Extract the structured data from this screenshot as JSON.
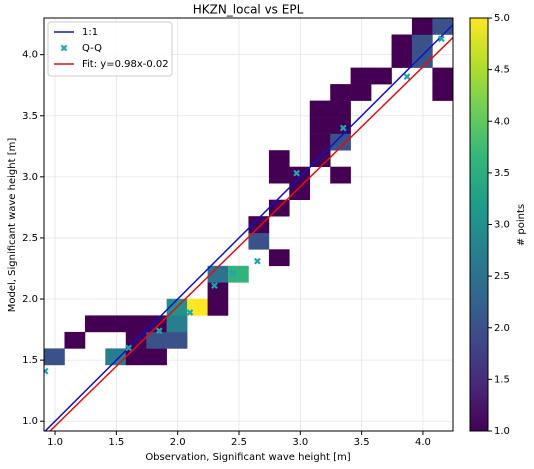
{
  "chart_data": {
    "type": "hist2d",
    "title": "HKZN_local vs EPL",
    "xlabel": "Observation, Significant wave height [m]",
    "ylabel": "Model, Significant wave height [m]",
    "xlim": [
      0.91,
      4.245
    ],
    "ylim": [
      0.92,
      4.3
    ],
    "xticks": [
      {
        "value": 1,
        "label": "1.0"
      },
      {
        "value": 1.5,
        "label": "1.5"
      },
      {
        "value": 2,
        "label": "2.0"
      },
      {
        "value": 2.5,
        "label": "2.5"
      },
      {
        "value": 3,
        "label": "3.0"
      },
      {
        "value": 3.5,
        "label": "3.5"
      },
      {
        "value": 4,
        "label": "4.0"
      }
    ],
    "yticks": [
      {
        "value": 1,
        "label": "1.0"
      },
      {
        "value": 1.5,
        "label": "1.5"
      },
      {
        "value": 2,
        "label": "2.0"
      },
      {
        "value": 2.5,
        "label": "2.5"
      },
      {
        "value": 3,
        "label": "3.0"
      },
      {
        "value": 3.5,
        "label": "3.5"
      },
      {
        "value": 4,
        "label": "4.0"
      }
    ],
    "grid": true,
    "legend": "upper left",
    "xbins": [
      0.91,
      1.077,
      1.244,
      1.41,
      1.577,
      1.744,
      1.91,
      2.077,
      2.244,
      2.41,
      2.577,
      2.744,
      2.91,
      3.077,
      3.244,
      3.41,
      3.577,
      3.744,
      3.91,
      4.077,
      4.245
    ],
    "ybins": [
      0.92,
      1.055,
      1.19,
      1.326,
      1.461,
      1.596,
      1.731,
      1.866,
      2.002,
      2.137,
      2.272,
      2.407,
      2.542,
      2.678,
      2.813,
      2.948,
      3.083,
      3.218,
      3.354,
      3.489,
      3.624,
      3.759,
      3.894,
      4.03,
      4.165,
      4.3
    ],
    "counts": [
      [
        null,
        null,
        null,
        null,
        null,
        null,
        null,
        null,
        null,
        null,
        null,
        null,
        null,
        null,
        null,
        null,
        null,
        null,
        null,
        null
      ],
      [
        null,
        null,
        null,
        null,
        null,
        null,
        null,
        null,
        null,
        null,
        null,
        null,
        null,
        null,
        null,
        null,
        null,
        null,
        null,
        null
      ],
      [
        null,
        null,
        null,
        null,
        null,
        null,
        null,
        null,
        null,
        null,
        null,
        null,
        null,
        null,
        null,
        null,
        null,
        null,
        null,
        null
      ],
      [
        null,
        null,
        null,
        null,
        null,
        null,
        null,
        null,
        null,
        null,
        null,
        null,
        null,
        null,
        null,
        null,
        null,
        null,
        null,
        null
      ],
      [
        2,
        null,
        null,
        2.7,
        1,
        1,
        null,
        null,
        null,
        null,
        null,
        null,
        null,
        null,
        null,
        null,
        null,
        null,
        null,
        null
      ],
      [
        null,
        1,
        null,
        null,
        1,
        2,
        2,
        null,
        null,
        null,
        null,
        null,
        null,
        null,
        null,
        null,
        null,
        null,
        null,
        null
      ],
      [
        null,
        null,
        1,
        1,
        1,
        1,
        2.7,
        null,
        null,
        null,
        null,
        null,
        null,
        null,
        null,
        null,
        null,
        null,
        null,
        null
      ],
      [
        null,
        null,
        null,
        null,
        null,
        null,
        3,
        5,
        1,
        null,
        null,
        null,
        null,
        null,
        null,
        null,
        null,
        null,
        null,
        null
      ],
      [
        null,
        null,
        null,
        null,
        null,
        null,
        null,
        null,
        1,
        null,
        null,
        null,
        null,
        null,
        null,
        null,
        null,
        null,
        null,
        null
      ],
      [
        null,
        null,
        null,
        null,
        null,
        null,
        null,
        null,
        2.5,
        3.6,
        null,
        null,
        null,
        null,
        null,
        null,
        null,
        null,
        null,
        null
      ],
      [
        null,
        null,
        null,
        null,
        null,
        null,
        null,
        null,
        null,
        null,
        null,
        1,
        null,
        null,
        null,
        null,
        null,
        null,
        null,
        null
      ],
      [
        null,
        null,
        null,
        null,
        null,
        null,
        null,
        null,
        null,
        null,
        2,
        null,
        null,
        null,
        null,
        null,
        null,
        null,
        null,
        null
      ],
      [
        null,
        null,
        null,
        null,
        null,
        null,
        null,
        null,
        null,
        null,
        1,
        null,
        null,
        null,
        null,
        null,
        null,
        null,
        null,
        null
      ],
      [
        null,
        null,
        null,
        null,
        null,
        null,
        null,
        null,
        null,
        null,
        null,
        1,
        null,
        null,
        null,
        null,
        null,
        null,
        null,
        null
      ],
      [
        null,
        null,
        null,
        null,
        null,
        null,
        null,
        null,
        null,
        null,
        null,
        null,
        1,
        null,
        null,
        null,
        null,
        null,
        null,
        null
      ],
      [
        null,
        null,
        null,
        null,
        null,
        null,
        null,
        null,
        null,
        null,
        null,
        1,
        1,
        null,
        1,
        null,
        null,
        null,
        null,
        null
      ],
      [
        null,
        null,
        null,
        null,
        null,
        null,
        null,
        null,
        null,
        null,
        null,
        1,
        null,
        1,
        null,
        null,
        null,
        null,
        null,
        null
      ],
      [
        null,
        null,
        null,
        null,
        null,
        null,
        null,
        null,
        null,
        null,
        null,
        null,
        null,
        1,
        2,
        null,
        null,
        null,
        null,
        null
      ],
      [
        null,
        null,
        null,
        null,
        null,
        null,
        null,
        null,
        null,
        null,
        null,
        null,
        null,
        1,
        1,
        null,
        null,
        null,
        null,
        null
      ],
      [
        null,
        null,
        null,
        null,
        null,
        null,
        null,
        null,
        null,
        null,
        null,
        null,
        null,
        1,
        1,
        null,
        null,
        null,
        null,
        null
      ],
      [
        null,
        null,
        null,
        null,
        null,
        null,
        null,
        null,
        null,
        null,
        null,
        null,
        null,
        null,
        1,
        1,
        null,
        null,
        null,
        1
      ],
      [
        null,
        null,
        null,
        null,
        null,
        null,
        null,
        null,
        null,
        null,
        null,
        null,
        null,
        null,
        null,
        1,
        1,
        null,
        null,
        1
      ],
      [
        null,
        null,
        null,
        null,
        null,
        null,
        null,
        null,
        null,
        null,
        null,
        null,
        null,
        null,
        null,
        null,
        null,
        1,
        2,
        null
      ],
      [
        null,
        null,
        null,
        null,
        null,
        null,
        null,
        null,
        null,
        null,
        null,
        null,
        null,
        null,
        null,
        null,
        null,
        1,
        2,
        null
      ],
      [
        null,
        null,
        null,
        null,
        null,
        null,
        null,
        null,
        null,
        null,
        null,
        null,
        null,
        null,
        null,
        null,
        null,
        null,
        1,
        2
      ]
    ],
    "colormap": [
      "#440154",
      "#482878",
      "#3e4989",
      "#31688e",
      "#26828e",
      "#1f9e89",
      "#35b779",
      "#6ece58",
      "#b5de2b",
      "#fde725"
    ],
    "clim": [
      1,
      5
    ],
    "colorbar_label": "# points",
    "colorbar_ticks": [
      {
        "value": 1,
        "label": "1.0"
      },
      {
        "value": 1.5,
        "label": "1.5"
      },
      {
        "value": 2,
        "label": "2.0"
      },
      {
        "value": 2.5,
        "label": "2.5"
      },
      {
        "value": 3,
        "label": "3.0"
      },
      {
        "value": 3.5,
        "label": "3.5"
      },
      {
        "value": 4,
        "label": "4.0"
      },
      {
        "value": 4.5,
        "label": "4.5"
      },
      {
        "value": 5,
        "label": "5.0"
      }
    ],
    "series": [
      {
        "name": "1:1",
        "type": "line",
        "color": "#1010c8",
        "slope": 1,
        "intercept": 0
      },
      {
        "name": "Q-Q",
        "type": "scatter",
        "color": "#1fa5b0",
        "x": [
          0.92,
          1.6,
          1.85,
          2.1,
          2.3,
          2.45,
          2.65,
          2.97,
          3.35,
          3.87,
          4.15
        ],
        "values": [
          1.41,
          1.6,
          1.74,
          1.89,
          2.11,
          2.21,
          2.31,
          3.03,
          3.4,
          3.82,
          4.13
        ]
      },
      {
        "name": "Fit: y=0.98x-0.02",
        "type": "line",
        "color": "#e01010",
        "slope": 0.98,
        "intercept": -0.02
      }
    ]
  }
}
